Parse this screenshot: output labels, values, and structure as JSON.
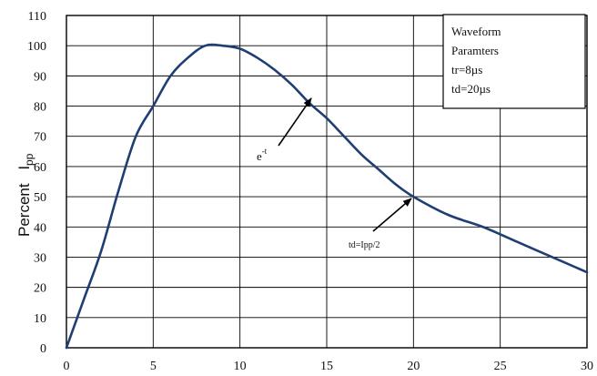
{
  "chart_data": {
    "type": "line",
    "title": "",
    "xlabel": "",
    "ylabel": "Percent",
    "ylabel_sub": "pp",
    "ylabel_main": "I",
    "xlim": [
      0,
      30
    ],
    "ylim": [
      0,
      110
    ],
    "x_ticks": [
      "0",
      "5",
      "10",
      "15",
      "20",
      "25",
      "30"
    ],
    "y_ticks": [
      "0",
      "10",
      "20",
      "30",
      "40",
      "50",
      "60",
      "70",
      "80",
      "90",
      "100",
      "110"
    ],
    "grid": true,
    "series": [
      {
        "x": [
          0,
          1,
          2,
          3,
          4,
          5,
          6,
          7,
          8,
          9,
          10,
          11,
          12,
          13,
          14,
          15,
          16,
          17,
          18,
          19,
          20,
          22,
          24,
          26,
          28,
          30
        ],
        "y": [
          0,
          16,
          32,
          52,
          70,
          80,
          90,
          96,
          100,
          100,
          99,
          96,
          92,
          87,
          81,
          76,
          70,
          64,
          59,
          54,
          50,
          44,
          40,
          35,
          30,
          25
        ]
      }
    ],
    "legend_box": {
      "position": "top-right",
      "lines": [
        "Waveform",
        "Paramters",
        "tr=8µs",
        "td=20µs"
      ]
    },
    "annotations": [
      {
        "label_main": "e",
        "label_sup": "-t",
        "target": [
          14,
          81
        ]
      },
      {
        "label": "td=Ipp/2",
        "target": [
          20,
          50
        ]
      }
    ]
  }
}
